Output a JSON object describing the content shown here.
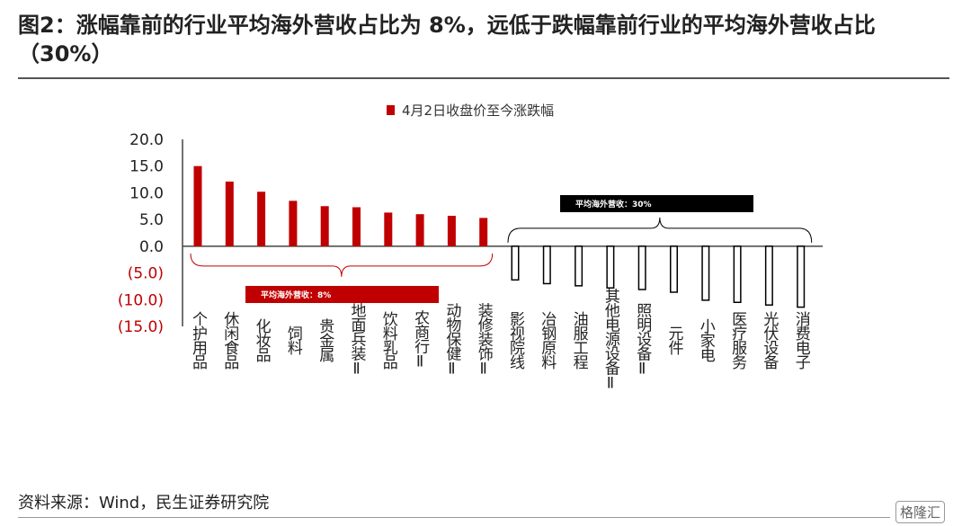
{
  "title": "图2：涨幅靠前的行业平均海外营收占比为 8%，远低于跌幅靠前行业的平均海外营收占比（30%）",
  "source": "资料来源：Wind，民生证券研究院",
  "watermark": "格隆汇",
  "colors": {
    "bar_up": "#C00000",
    "bar_down_fill": "#ffffff",
    "bar_down_stroke": "#000000",
    "axis": "#444444",
    "neg_tick": "#C00000",
    "annot_up": "#C00000",
    "annot_down": "#000000"
  },
  "chart_data": {
    "type": "bar",
    "series": [
      {
        "name": "4月2日收盘价至今涨跌幅",
        "values": [
          15.0,
          12.1,
          10.2,
          8.5,
          7.5,
          7.3,
          6.3,
          6.0,
          5.7,
          5.3,
          -6.3,
          -7.0,
          -7.4,
          -7.8,
          -8.1,
          -8.6,
          -10.1,
          -10.5,
          -11.0,
          -11.4
        ]
      }
    ],
    "categories": [
      "个护用品",
      "休闲食品",
      "化妆品",
      "饲料",
      "贵金属",
      "地面兵装Ⅱ",
      "饮料乳品",
      "农商行Ⅱ",
      "动物保健Ⅱ",
      "装修装饰Ⅱ",
      "影视院线",
      "冶钢原料",
      "油服工程",
      "其他电源设备Ⅱ",
      "照明设备Ⅱ",
      "元件",
      "小家电",
      "医疗服务",
      "光伏设备",
      "消费电子"
    ],
    "ylim": [
      -15,
      20
    ],
    "yticks": [
      20,
      15,
      10,
      5,
      0,
      -5,
      -10,
      -15
    ],
    "ytick_labels": [
      "20.0",
      "15.0",
      "10.0",
      "5.0",
      "0.0",
      "(5.0)",
      "(10.0)",
      "(15.0)"
    ],
    "legend": {
      "label": "4月2日收盘价至今涨跌幅",
      "position": "top"
    },
    "annotations": [
      {
        "text": "平均海外营收：8%",
        "group": "up"
      },
      {
        "text": "平均海外营收：30%",
        "group": "down"
      }
    ]
  }
}
